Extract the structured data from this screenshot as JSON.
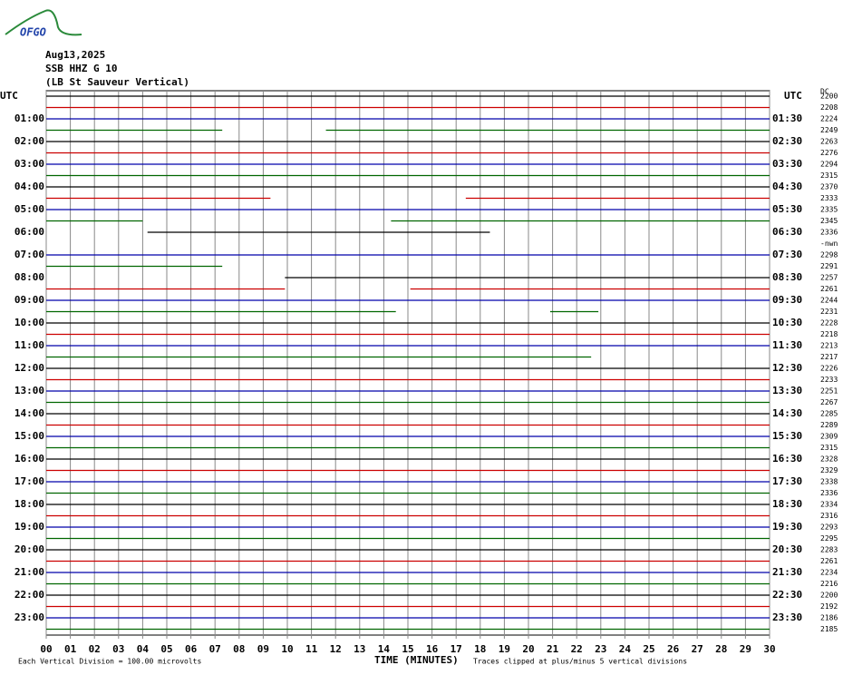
{
  "logo": "OFGO",
  "header": {
    "date": "Aug13,2025",
    "station": "SSB HHZ G 10",
    "site": "(LB St Sauveur Vertical)"
  },
  "left_top": "UTC",
  "right_top": "UTC",
  "dc_label": "DC",
  "left_labels": [
    "01:00",
    "02:00",
    "03:00",
    "04:00",
    "05:00",
    "06:00",
    "07:00",
    "08:00",
    "09:00",
    "10:00",
    "11:00",
    "12:00",
    "13:00",
    "14:00",
    "15:00",
    "16:00",
    "17:00",
    "18:00",
    "19:00",
    "20:00",
    "21:00",
    "22:00",
    "23:00"
  ],
  "right_labels": [
    "01:30",
    "02:30",
    "03:30",
    "04:30",
    "05:30",
    "06:30",
    "07:30",
    "08:30",
    "09:30",
    "10:30",
    "11:30",
    "12:30",
    "13:30",
    "14:30",
    "15:30",
    "16:30",
    "17:30",
    "18:30",
    "19:30",
    "20:30",
    "21:30",
    "22:30",
    "23:30"
  ],
  "dc_values": [
    "2200",
    "2208",
    "2224",
    "2249",
    "2263",
    "2276",
    "2294",
    "2315",
    "2370",
    "2333",
    "2335",
    "2345",
    "2336",
    "-nwn",
    "2298",
    "2291",
    "2257",
    "2261",
    "2244",
    "2231",
    "2228",
    "2218",
    "2213",
    "2217",
    "2226",
    "2233",
    "2251",
    "2267",
    "2285",
    "2289",
    "2309",
    "2315",
    "2328",
    "2329",
    "2338",
    "2336",
    "2334",
    "2316",
    "2293",
    "2295",
    "2283",
    "2261",
    "2234",
    "2216",
    "2200",
    "2192",
    "2186",
    "2185"
  ],
  "trace_colors": [
    "#000000",
    "#cc0000",
    "#0000aa",
    "#006600"
  ],
  "xlim": [
    0,
    30
  ],
  "xticks": [
    "00",
    "01",
    "02",
    "03",
    "04",
    "05",
    "06",
    "07",
    "08",
    "09",
    "10",
    "11",
    "12",
    "13",
    "14",
    "15",
    "16",
    "17",
    "18",
    "19",
    "20",
    "21",
    "22",
    "23",
    "24",
    "25",
    "26",
    "27",
    "28",
    "29",
    "30"
  ],
  "partial_rows": {
    "3": [
      [
        0,
        7.3
      ],
      [
        11.6,
        30
      ]
    ],
    "9": [
      [
        0,
        9.3
      ],
      [
        17.4,
        30
      ]
    ],
    "11": [
      [
        0,
        4
      ],
      [
        14.3,
        30
      ]
    ],
    "12": [
      [
        4.2,
        18.4
      ]
    ],
    "13": [],
    "15": [
      [
        0,
        7.3
      ]
    ],
    "16": [
      [
        9.9,
        30
      ]
    ],
    "17": [
      [
        0,
        9.9
      ],
      [
        15.1,
        30
      ]
    ],
    "19": [
      [
        0,
        14.5
      ],
      [
        20.9,
        22.9
      ]
    ],
    "23": [
      [
        0,
        22.6
      ]
    ]
  },
  "footer": {
    "division": "Each Vertical Division =  100.00 microvolts",
    "axis_title": "TIME (MINUTES)",
    "clip": "Traces clipped at plus/minus 5 vertical divisions"
  }
}
